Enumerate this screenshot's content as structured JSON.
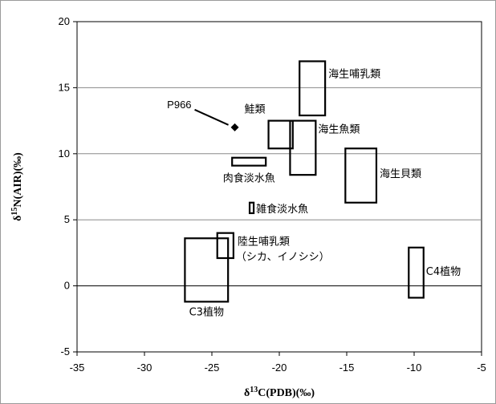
{
  "chart_data": {
    "type": "scatter",
    "xlabel": "δ13C(PDB)(‰)",
    "ylabel": "δ15N(AIR)(‰)",
    "xlim": [
      -35,
      -5
    ],
    "ylim": [
      -5,
      20
    ],
    "x_ticks": [
      "-35",
      "-30",
      "-25",
      "-20",
      "-15",
      "-10",
      "-5"
    ],
    "y_ticks": [
      "-5",
      "0",
      "5",
      "10",
      "15",
      "20"
    ],
    "grid": "horizontal",
    "points": [
      {
        "label": "P966",
        "x": -23.3,
        "y": 12.0
      }
    ],
    "ranges": [
      {
        "label": "海生哺乳類",
        "x_min": -18.5,
        "x_max": -16.6,
        "y_min": 12.9,
        "y_max": 17.0
      },
      {
        "label": "鮭類",
        "x_min": -20.8,
        "x_max": -19.0,
        "y_min": 10.4,
        "y_max": 12.5
      },
      {
        "label": "海生魚類",
        "x_min": -19.2,
        "x_max": -17.3,
        "y_min": 8.4,
        "y_max": 12.5
      },
      {
        "label": "海生貝類",
        "x_min": -15.1,
        "x_max": -12.8,
        "y_min": 6.3,
        "y_max": 10.4
      },
      {
        "label": "肉食淡水魚",
        "x_min": -23.5,
        "x_max": -21.0,
        "y_min": 9.1,
        "y_max": 9.7
      },
      {
        "label": "雑食淡水魚",
        "x_min": -22.2,
        "x_max": -21.9,
        "y_min": 5.5,
        "y_max": 6.3
      },
      {
        "label": "陸生哺乳類",
        "label2": "（シカ、イノシシ）",
        "x_min": -24.6,
        "x_max": -23.4,
        "y_min": 2.1,
        "y_max": 4.0
      },
      {
        "label": "C3植物",
        "x_min": -27.0,
        "x_max": -23.8,
        "y_min": -1.2,
        "y_max": 3.6
      },
      {
        "label": "C4植物",
        "x_min": -10.4,
        "x_max": -9.3,
        "y_min": -0.9,
        "y_max": 2.9
      }
    ]
  }
}
